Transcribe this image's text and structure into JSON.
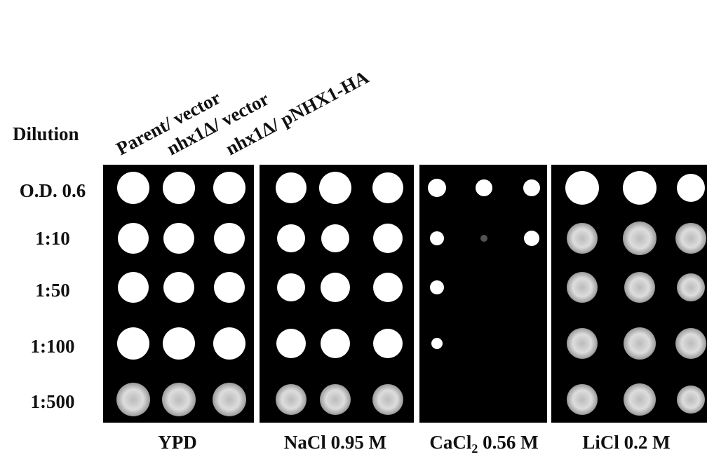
{
  "header": {
    "dilution": "Dilution",
    "strains": [
      "Parent/ vector",
      "nhx1Δ/ vector",
      "nhx1Δ/ pNHX1-HA"
    ]
  },
  "rows": [
    "O.D. 0.6",
    "1:10",
    "1:50",
    "1:100",
    "1:500"
  ],
  "panels": [
    {
      "label": [
        "YPD"
      ]
    },
    {
      "label": [
        "NaCl  0.95 M"
      ]
    },
    {
      "label": [
        "CaCl",
        "2",
        " 0.56 M"
      ]
    },
    {
      "label": [
        "LiCl 0.2 M"
      ]
    }
  ]
}
